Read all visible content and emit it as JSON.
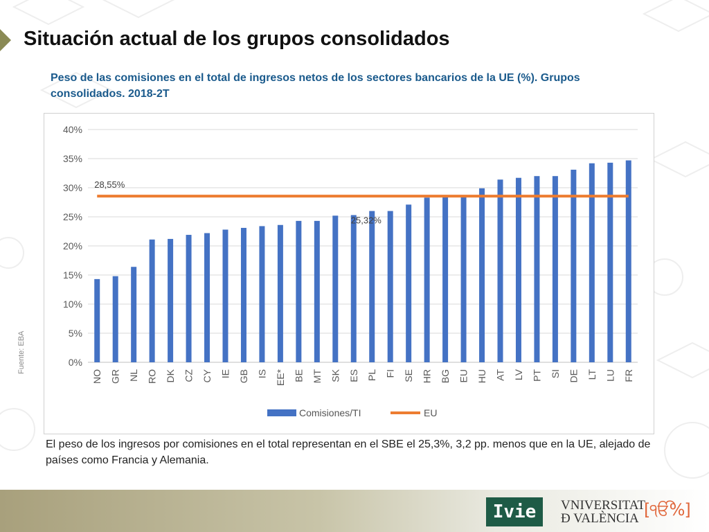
{
  "slide": {
    "title": "Situación actual de los grupos consolidados",
    "caption": "El peso de los ingresos por comisiones en el total representan en el SBE el 25,3%, 3,2 pp. menos que en la UE, alejado de países como Francia y Alemania.",
    "source_note": "Fuente: EBA",
    "logos": {
      "ivie": "Ivie",
      "university_line1": "VNIVERSITAT",
      "university_line2": "Ð VALÈNCIA",
      "university_mark": "[ੴ%]"
    }
  },
  "chart_data": {
    "type": "bar",
    "title": "Peso de las comisiones en el total de ingresos netos de los sectores bancarios de la UE (%). Grupos consolidados. 2018-2T",
    "categories": [
      "NO",
      "GR",
      "NL",
      "RO",
      "DK",
      "CZ",
      "CY",
      "IE",
      "GB",
      "IS",
      "EE*",
      "BE",
      "MT",
      "SK",
      "ES",
      "PL",
      "FI",
      "SE",
      "HR",
      "BG",
      "EU",
      "HU",
      "AT",
      "LV",
      "PT",
      "SI",
      "DE",
      "LT",
      "LU",
      "FR"
    ],
    "series": [
      {
        "name": "Comisiones/TI",
        "color": "#4472c4",
        "values": [
          14.3,
          14.8,
          16.4,
          21.1,
          21.2,
          21.9,
          22.2,
          22.8,
          23.1,
          23.4,
          23.6,
          24.3,
          24.3,
          25.2,
          25.3,
          26.0,
          26.0,
          27.1,
          28.3,
          28.4,
          28.5,
          29.9,
          31.4,
          31.7,
          32.0,
          32.0,
          33.1,
          34.2,
          34.3,
          34.7
        ]
      },
      {
        "name": "EU",
        "type": "line",
        "color": "#ed7d31",
        "value": 28.55
      }
    ],
    "annotations": [
      {
        "text": "28,55%",
        "category": "NO",
        "value": 28.55
      },
      {
        "text": "25,32%",
        "category": "ES",
        "value": 25.32
      }
    ],
    "y_ticks": [
      0,
      5,
      10,
      15,
      20,
      25,
      30,
      35,
      40
    ],
    "y_tick_labels": [
      "0%",
      "5%",
      "10%",
      "15%",
      "20%",
      "25%",
      "30%",
      "35%",
      "40%"
    ],
    "ylim": [
      0,
      40
    ],
    "grid": true,
    "legend_position": "bottom"
  }
}
